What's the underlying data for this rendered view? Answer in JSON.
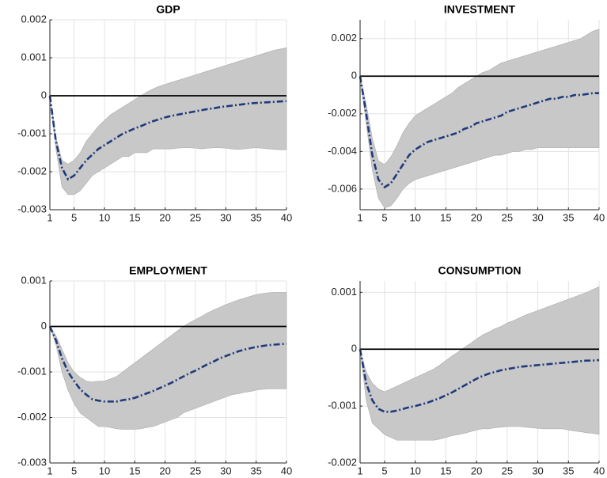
{
  "chart_data": [
    {
      "type": "line",
      "title": "GDP",
      "grid": true,
      "color": "#1f3a7a",
      "band_color": "#c8c8c8",
      "linestyle": "dashdot",
      "hline": 0,
      "x": [
        1,
        2,
        3,
        4,
        5,
        6,
        7,
        8,
        9,
        10,
        11,
        12,
        13,
        14,
        15,
        16,
        17,
        18,
        19,
        20,
        21,
        22,
        23,
        24,
        25,
        26,
        27,
        28,
        29,
        30,
        31,
        32,
        33,
        34,
        35,
        36,
        37,
        38,
        39,
        40
      ],
      "xlim": [
        1,
        40
      ],
      "xticks": [
        1,
        5,
        10,
        15,
        20,
        25,
        30,
        35,
        40
      ],
      "ylim": [
        -0.003,
        0.002
      ],
      "yticks": [
        -0.003,
        -0.002,
        -0.001,
        0,
        0.001,
        0.002
      ],
      "values": [
        0,
        -0.0012,
        -0.0019,
        -0.0022,
        -0.0021,
        -0.0019,
        -0.0017,
        -0.00155,
        -0.0014,
        -0.0013,
        -0.0012,
        -0.0011,
        -0.001,
        -0.00093,
        -0.00086,
        -0.0008,
        -0.00073,
        -0.00067,
        -0.00062,
        -0.00057,
        -0.00053,
        -0.0005,
        -0.00047,
        -0.00044,
        -0.00041,
        -0.00038,
        -0.00035,
        -0.00033,
        -0.0003,
        -0.00028,
        -0.00026,
        -0.00024,
        -0.00022,
        -0.0002,
        -0.00019,
        -0.00018,
        -0.00017,
        -0.00016,
        -0.00015,
        -0.00014
      ],
      "lower": [
        0,
        -0.0014,
        -0.0024,
        -0.0026,
        -0.0026,
        -0.0025,
        -0.0023,
        -0.0021,
        -0.002,
        -0.0019,
        -0.0018,
        -0.0017,
        -0.0016,
        -0.0016,
        -0.0015,
        -0.0015,
        -0.0015,
        -0.0014,
        -0.0014,
        -0.0014,
        -0.0014,
        -0.00138,
        -0.00137,
        -0.00137,
        -0.00138,
        -0.0014,
        -0.00138,
        -0.00137,
        -0.00137,
        -0.00138,
        -0.0014,
        -0.00141,
        -0.0014,
        -0.00138,
        -0.00137,
        -0.00138,
        -0.0014,
        -0.00141,
        -0.00142,
        -0.00142
      ],
      "upper": [
        0,
        -0.0011,
        -0.0017,
        -0.0018,
        -0.0017,
        -0.0015,
        -0.0012,
        -0.001,
        -0.0008,
        -0.00065,
        -0.0005,
        -0.0004,
        -0.0003,
        -0.0002,
        -0.0001,
        0,
        0.0001,
        0.00018,
        0.00025,
        0.0003,
        0.00035,
        0.0004,
        0.00045,
        0.0005,
        0.00055,
        0.0006,
        0.00065,
        0.0007,
        0.00075,
        0.0008,
        0.00085,
        0.0009,
        0.00095,
        0.001,
        0.00105,
        0.0011,
        0.00115,
        0.0012,
        0.00123,
        0.00126
      ]
    },
    {
      "type": "line",
      "title": "INVESTMENT",
      "grid": true,
      "color": "#1f3a7a",
      "band_color": "#c8c8c8",
      "linestyle": "dashdot",
      "hline": 0,
      "x": [
        1,
        2,
        3,
        4,
        5,
        6,
        7,
        8,
        9,
        10,
        11,
        12,
        13,
        14,
        15,
        16,
        17,
        18,
        19,
        20,
        21,
        22,
        23,
        24,
        25,
        26,
        27,
        28,
        29,
        30,
        31,
        32,
        33,
        34,
        35,
        36,
        37,
        38,
        39,
        40
      ],
      "xlim": [
        1,
        40
      ],
      "xticks": [
        1,
        5,
        10,
        15,
        20,
        25,
        30,
        35,
        40
      ],
      "ylim": [
        -0.0071,
        0.003
      ],
      "yticks": [
        -0.006,
        -0.004,
        -0.002,
        0,
        0.002
      ],
      "values": [
        0,
        -0.002,
        -0.0042,
        -0.0055,
        -0.0059,
        -0.0057,
        -0.0052,
        -0.0047,
        -0.0042,
        -0.0039,
        -0.0037,
        -0.0035,
        -0.0034,
        -0.0033,
        -0.0032,
        -0.0031,
        -0.003,
        -0.0028,
        -0.0027,
        -0.0025,
        -0.0024,
        -0.0023,
        -0.0022,
        -0.0021,
        -0.0019,
        -0.0018,
        -0.0017,
        -0.0016,
        -0.0015,
        -0.0014,
        -0.0013,
        -0.0012,
        -0.0012,
        -0.0011,
        -0.0011,
        -0.001,
        -0.001,
        -0.00095,
        -0.0009,
        -0.0009
      ],
      "lower": [
        0,
        -0.0025,
        -0.005,
        -0.0065,
        -0.007,
        -0.0069,
        -0.0065,
        -0.006,
        -0.0057,
        -0.0055,
        -0.0054,
        -0.0053,
        -0.0052,
        -0.0051,
        -0.005,
        -0.0049,
        -0.0048,
        -0.0047,
        -0.0046,
        -0.0045,
        -0.0044,
        -0.0043,
        -0.0042,
        -0.0042,
        -0.0041,
        -0.004,
        -0.004,
        -0.0039,
        -0.0039,
        -0.0038,
        -0.0038,
        -0.0038,
        -0.0038,
        -0.0038,
        -0.0038,
        -0.0038,
        -0.0038,
        -0.0038,
        -0.0038,
        -0.0038
      ],
      "upper": [
        0,
        -0.0015,
        -0.0033,
        -0.0045,
        -0.0047,
        -0.0043,
        -0.0037,
        -0.003,
        -0.0025,
        -0.0021,
        -0.0019,
        -0.0017,
        -0.0015,
        -0.0013,
        -0.0011,
        -0.0009,
        -0.0006,
        -0.0004,
        -0.0002,
        0,
        0.0002,
        0.0003,
        0.0005,
        0.0007,
        0.0008,
        0.0009,
        0.001,
        0.0011,
        0.0012,
        0.0013,
        0.0014,
        0.0015,
        0.0016,
        0.0017,
        0.0018,
        0.0019,
        0.002,
        0.0022,
        0.0024,
        0.0025
      ]
    },
    {
      "type": "line",
      "title": "EMPLOYMENT",
      "grid": true,
      "color": "#1f3a7a",
      "band_color": "#c8c8c8",
      "linestyle": "dashdot",
      "hline": 0,
      "x": [
        1,
        2,
        3,
        4,
        5,
        6,
        7,
        8,
        9,
        10,
        11,
        12,
        13,
        14,
        15,
        16,
        17,
        18,
        19,
        20,
        21,
        22,
        23,
        24,
        25,
        26,
        27,
        28,
        29,
        30,
        31,
        32,
        33,
        34,
        35,
        36,
        37,
        38,
        39,
        40
      ],
      "xlim": [
        1,
        40
      ],
      "xticks": [
        1,
        5,
        10,
        15,
        20,
        25,
        30,
        35,
        40
      ],
      "ylim": [
        -0.003,
        0.001
      ],
      "yticks": [
        -0.003,
        -0.002,
        -0.001,
        0,
        0.001
      ],
      "values": [
        0,
        -0.0003,
        -0.0007,
        -0.001,
        -0.0012,
        -0.00138,
        -0.0015,
        -0.0016,
        -0.00163,
        -0.00165,
        -0.00165,
        -0.00165,
        -0.00162,
        -0.0016,
        -0.00157,
        -0.00152,
        -0.00147,
        -0.00142,
        -0.00136,
        -0.0013,
        -0.00124,
        -0.00117,
        -0.0011,
        -0.00103,
        -0.00097,
        -0.0009,
        -0.00083,
        -0.00077,
        -0.0007,
        -0.00065,
        -0.0006,
        -0.00055,
        -0.00051,
        -0.00048,
        -0.00045,
        -0.00043,
        -0.00041,
        -0.0004,
        -0.00039,
        -0.00038
      ],
      "lower": [
        0,
        -0.0004,
        -0.001,
        -0.0014,
        -0.0017,
        -0.0019,
        -0.002,
        -0.0021,
        -0.0022,
        -0.0022,
        -0.00222,
        -0.00225,
        -0.00226,
        -0.00226,
        -0.00226,
        -0.00225,
        -0.00222,
        -0.0022,
        -0.00215,
        -0.0021,
        -0.00205,
        -0.002,
        -0.0019,
        -0.00185,
        -0.0018,
        -0.00175,
        -0.0017,
        -0.00165,
        -0.0016,
        -0.00155,
        -0.0015,
        -0.00148,
        -0.00145,
        -0.00143,
        -0.0014,
        -0.00138,
        -0.00137,
        -0.00137,
        -0.00137,
        -0.00137
      ],
      "upper": [
        0,
        -0.0002,
        -0.0005,
        -0.0008,
        -0.001,
        -0.00112,
        -0.0012,
        -0.00122,
        -0.0012,
        -0.0012,
        -0.00115,
        -0.0011,
        -0.001,
        -0.0009,
        -0.0008,
        -0.0007,
        -0.0006,
        -0.0005,
        -0.0004,
        -0.0003,
        -0.0002,
        -0.0001,
        0,
        8e-05,
        0.00015,
        0.00022,
        0.0003,
        0.00036,
        0.00042,
        0.00048,
        0.00053,
        0.00058,
        0.00062,
        0.00066,
        0.0007,
        0.00072,
        0.00074,
        0.00075,
        0.00075,
        0.00075
      ]
    },
    {
      "type": "line",
      "title": "CONSUMPTION",
      "grid": true,
      "color": "#1f3a7a",
      "band_color": "#c8c8c8",
      "linestyle": "dashdot",
      "hline": 0,
      "x": [
        1,
        2,
        3,
        4,
        5,
        6,
        7,
        8,
        9,
        10,
        11,
        12,
        13,
        14,
        15,
        16,
        17,
        18,
        19,
        20,
        21,
        22,
        23,
        24,
        25,
        26,
        27,
        28,
        29,
        30,
        31,
        32,
        33,
        34,
        35,
        36,
        37,
        38,
        39,
        40
      ],
      "xlim": [
        1,
        40
      ],
      "xticks": [
        1,
        5,
        10,
        15,
        20,
        25,
        30,
        35,
        40
      ],
      "ylim": [
        -0.002,
        0.0012
      ],
      "yticks": [
        -0.002,
        -0.001,
        0,
        0.001
      ],
      "values": [
        0,
        -0.0006,
        -0.0009,
        -0.00105,
        -0.0011,
        -0.0011,
        -0.00108,
        -0.00105,
        -0.00102,
        -0.001,
        -0.00097,
        -0.00094,
        -0.0009,
        -0.00086,
        -0.00081,
        -0.00076,
        -0.0007,
        -0.00064,
        -0.00058,
        -0.00052,
        -0.00047,
        -0.00043,
        -0.0004,
        -0.00037,
        -0.00035,
        -0.00033,
        -0.00031,
        -0.0003,
        -0.00029,
        -0.00028,
        -0.00027,
        -0.00026,
        -0.00025,
        -0.00024,
        -0.00023,
        -0.00022,
        -0.00021,
        -0.0002,
        -0.0002,
        -0.00019
      ],
      "lower": [
        0,
        -0.0009,
        -0.0013,
        -0.0014,
        -0.0015,
        -0.00155,
        -0.0016,
        -0.0016,
        -0.0016,
        -0.0016,
        -0.0016,
        -0.0016,
        -0.0016,
        -0.00158,
        -0.00155,
        -0.00152,
        -0.0015,
        -0.00148,
        -0.00145,
        -0.00142,
        -0.0014,
        -0.0014,
        -0.00138,
        -0.00137,
        -0.00136,
        -0.00136,
        -0.00136,
        -0.00137,
        -0.00138,
        -0.00139,
        -0.0014,
        -0.0014,
        -0.0014,
        -0.0014,
        -0.00142,
        -0.00144,
        -0.00145,
        -0.00147,
        -0.00148,
        -0.0015
      ],
      "upper": [
        0,
        -0.0004,
        -0.0006,
        -0.0007,
        -0.00075,
        -0.0007,
        -0.00065,
        -0.0006,
        -0.00055,
        -0.0005,
        -0.00045,
        -0.0004,
        -0.00035,
        -0.00028,
        -0.0002,
        -0.00012,
        -5e-05,
        3e-05,
        0.0001,
        0.00018,
        0.00025,
        0.0003,
        0.00036,
        0.0004,
        0.00046,
        0.0005,
        0.00055,
        0.0006,
        0.00064,
        0.00068,
        0.00072,
        0.00076,
        0.0008,
        0.00084,
        0.00088,
        0.00092,
        0.00096,
        0.001,
        0.00105,
        0.0011
      ]
    }
  ]
}
